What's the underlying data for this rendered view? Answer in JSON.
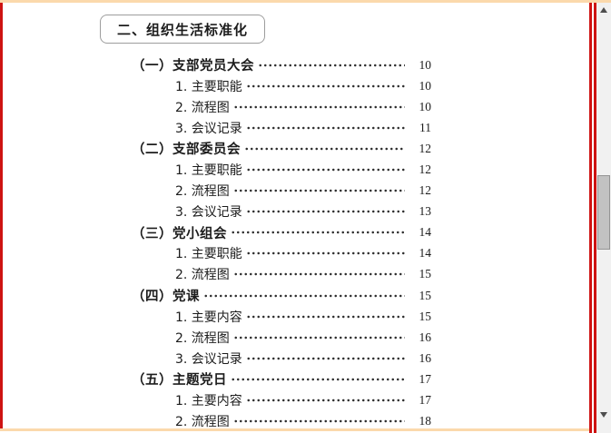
{
  "page": {
    "heading": "二、组织生活标准化"
  },
  "toc": {
    "entries": [
      {
        "level": 1,
        "label": "（一）支部党员大会",
        "page": "10"
      },
      {
        "level": 2,
        "label": "1. 主要职能",
        "page": "10"
      },
      {
        "level": 2,
        "label": "2. 流程图",
        "page": "10"
      },
      {
        "level": 2,
        "label": "3. 会议记录",
        "page": "11"
      },
      {
        "level": 1,
        "label": "（二）支部委员会",
        "page": "12"
      },
      {
        "level": 2,
        "label": "1. 主要职能",
        "page": "12"
      },
      {
        "level": 2,
        "label": "2. 流程图",
        "page": "12"
      },
      {
        "level": 2,
        "label": "3. 会议记录",
        "page": "13"
      },
      {
        "level": 1,
        "label": "（三）党小组会",
        "page": "14"
      },
      {
        "level": 2,
        "label": "1. 主要职能",
        "page": "14"
      },
      {
        "level": 2,
        "label": "2. 流程图",
        "page": "15"
      },
      {
        "level": 1,
        "label": "（四）党课",
        "page": "15"
      },
      {
        "level": 2,
        "label": "1. 主要内容",
        "page": "15"
      },
      {
        "level": 2,
        "label": "2. 流程图",
        "page": "16"
      },
      {
        "level": 2,
        "label": "3. 会议记录",
        "page": "16"
      },
      {
        "level": 1,
        "label": "（五）主题党日",
        "page": "17"
      },
      {
        "level": 2,
        "label": "1. 主要内容",
        "page": "17"
      },
      {
        "level": 2,
        "label": "2. 流程图",
        "page": "18"
      }
    ]
  },
  "scrollbar": {
    "up_icon": "arrow-up",
    "down_icon": "arrow-down"
  },
  "colors": {
    "border-red": "#ce1312",
    "border-peach": "#fbd9ac",
    "track": "#f1f1f1",
    "thumb": "#c2c2c2",
    "thumb-border": "#949494",
    "arrow": "#4e4e4e",
    "box-border": "#9d9d9d",
    "ink": "#1c1c1c"
  }
}
